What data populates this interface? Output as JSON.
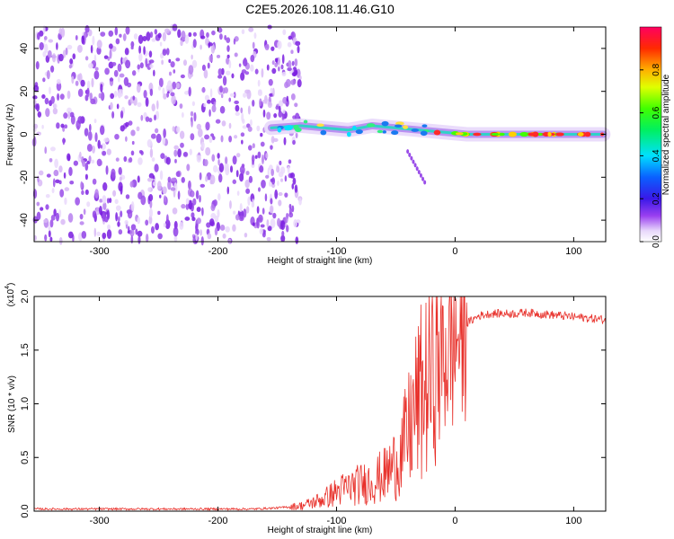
{
  "title": "C2E5.2026.108.11.46.G10",
  "chart_data": [
    {
      "type": "heatmap",
      "xlabel": "Height of straight line (km)",
      "ylabel": "Frequency (Hz)",
      "xlim": [
        -355,
        127
      ],
      "ylim": [
        -50,
        50
      ],
      "xticks": [
        -300,
        -200,
        -100,
        0,
        100
      ],
      "yticks": [
        -40,
        -20,
        0,
        20,
        40
      ],
      "colorbar": {
        "label": "Normalized spectral amplitude",
        "range": [
          0.0,
          1.0
        ],
        "ticks": [
          0.0,
          0.2,
          0.4,
          0.6,
          0.8
        ]
      },
      "ridge": [
        {
          "x": -155,
          "freq": 3
        },
        {
          "x": -130,
          "freq": 4
        },
        {
          "x": -110,
          "freq": 3
        },
        {
          "x": -90,
          "freq": 2
        },
        {
          "x": -70,
          "freq": 4
        },
        {
          "x": -50,
          "freq": 3
        },
        {
          "x": -30,
          "freq": 2
        },
        {
          "x": -10,
          "freq": 1
        },
        {
          "x": 10,
          "freq": 0
        },
        {
          "x": 50,
          "freq": 0
        },
        {
          "x": 90,
          "freq": 0
        },
        {
          "x": 125,
          "freq": 0
        }
      ],
      "noise_region": {
        "x_from": -355,
        "x_to": -140
      }
    },
    {
      "type": "line",
      "xlabel": "Height of straight line (km)",
      "ylabel": "SNR (10 * v/v)",
      "scale_label": "(x10",
      "scale_exponent": "4",
      "xlim": [
        -355,
        127
      ],
      "ylim": [
        0.0,
        2.0
      ],
      "xticks": [
        -300,
        -200,
        -100,
        0,
        100
      ],
      "yticks": [
        "0.0",
        "0.5",
        "1.0",
        "1.5",
        "2.0"
      ],
      "series": [
        {
          "color": "#e8302a",
          "x": [
            -355,
            -300,
            -250,
            -200,
            -170,
            -150,
            -130,
            -120,
            -110,
            -100,
            -90,
            -80,
            -70,
            -60,
            -50,
            -45,
            -40,
            -35,
            -30,
            -25,
            -20,
            -15,
            -10,
            -5,
            0,
            10,
            20,
            30,
            40,
            50,
            60,
            70,
            80,
            90,
            100,
            110,
            120,
            127
          ],
          "y": [
            0.02,
            0.02,
            0.02,
            0.02,
            0.02,
            0.03,
            0.05,
            0.08,
            0.12,
            0.18,
            0.22,
            0.25,
            0.28,
            0.33,
            0.45,
            0.55,
            0.7,
            0.9,
            1.05,
            1.15,
            1.25,
            1.35,
            1.45,
            1.55,
            1.6,
            1.75,
            1.82,
            1.84,
            1.84,
            1.84,
            1.85,
            1.84,
            1.83,
            1.82,
            1.81,
            1.8,
            1.79,
            1.78
          ]
        }
      ]
    }
  ]
}
